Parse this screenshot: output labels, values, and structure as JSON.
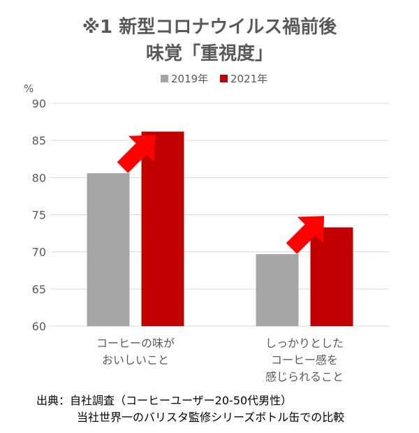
{
  "chart_data": {
    "type": "bar",
    "title": "※1 新型コロナウイルス禍前後",
    "subtitle": "味覚「重視度」",
    "ylabel": "%",
    "xlabel": "",
    "ylim": [
      60,
      90
    ],
    "yticks": [
      60,
      65,
      70,
      75,
      80,
      85,
      90
    ],
    "grid": true,
    "legend_position": "top",
    "categories": [
      [
        "コーヒーの味が",
        "おいしいこと"
      ],
      [
        "しっかりとした",
        "コーヒー感を",
        "感じられること"
      ]
    ],
    "series": [
      {
        "name": "2019年",
        "color": "#a6a6a6",
        "values": [
          80.6,
          69.7
        ]
      },
      {
        "name": "2021年",
        "color": "#c00000",
        "values": [
          86.2,
          73.3
        ]
      }
    ],
    "annotations": [
      "red-up-arrow",
      "red-up-arrow"
    ],
    "arrow_color": "#ff0000"
  },
  "source": {
    "line1": "出典：自社調査（コーヒーユーザー20-50代男性）",
    "line2": "当社世界一のバリスタ監修シリーズボトル缶での比較"
  }
}
